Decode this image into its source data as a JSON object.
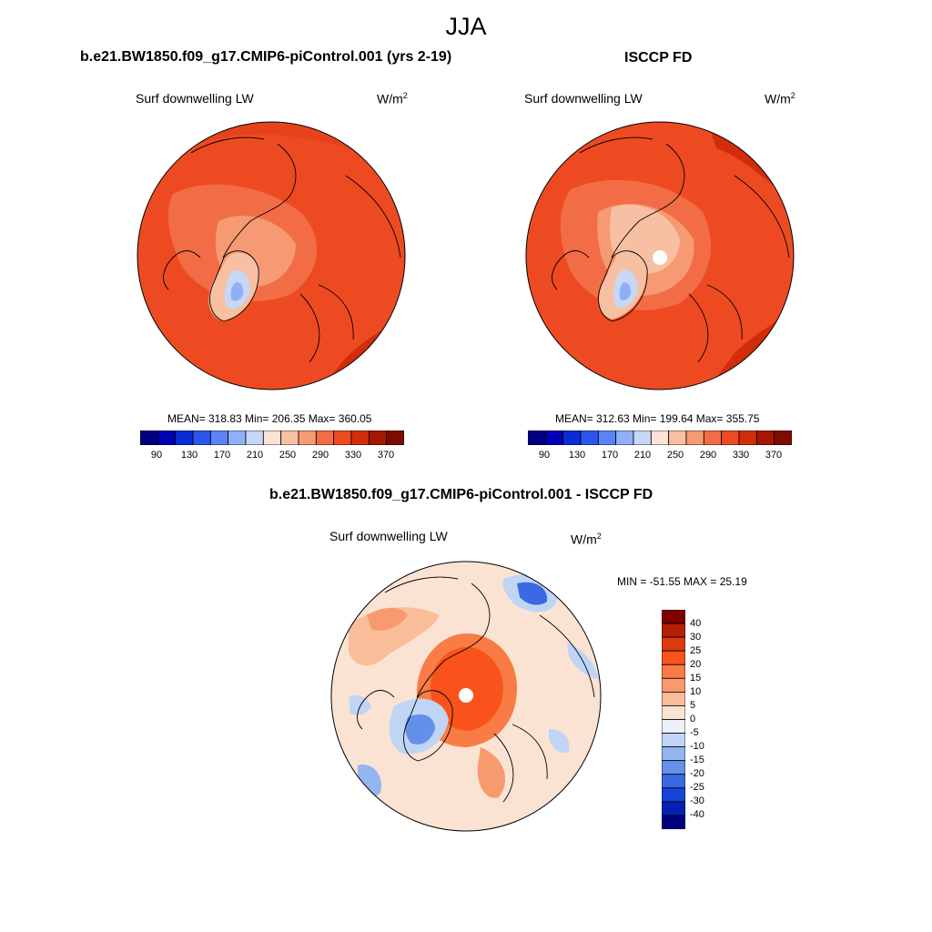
{
  "figure": {
    "season": "JJA"
  },
  "panels": [
    {
      "title": "b.e21.BW1850.f09_g17.CMIP6-piControl.001 (yrs 2-19)",
      "variable": "Surf downwelling LW",
      "units_base": "W/m",
      "units_exp": "2",
      "stats": "MEAN= 318.83  Min= 206.35  Max= 360.05"
    },
    {
      "title": "ISCCP FD",
      "variable": "Surf downwelling LW",
      "units_base": "W/m",
      "units_exp": "2",
      "stats": "MEAN= 312.63  Min= 199.64  Max= 355.75"
    },
    {
      "title": "b.e21.BW1850.f09_g17.CMIP6-piControl.001 - ISCCP FD",
      "variable": "Surf downwelling LW",
      "units_base": "W/m",
      "units_exp": "2",
      "stats": "MIN = -51.55 MAX =  25.19"
    }
  ],
  "colorbars": {
    "absolute": {
      "orientation": "horizontal",
      "colors": [
        "#000080",
        "#0000b4",
        "#0a2bd6",
        "#2c55ee",
        "#5a84f5",
        "#8fb0f6",
        "#c6d8f6",
        "#fbe3d3",
        "#f8c0a2",
        "#f69a73",
        "#f26c45",
        "#ee4a22",
        "#d22d0b",
        "#a61702",
        "#7c0b00"
      ],
      "labels": [
        "90",
        "130",
        "170",
        "210",
        "250",
        "290",
        "330",
        "370"
      ]
    },
    "difference": {
      "orientation": "vertical",
      "colors_top_to_bottom": [
        "#800000",
        "#b41f06",
        "#dd3a0c",
        "#f9531b",
        "#f97b45",
        "#f99a6e",
        "#f9bd99",
        "#fbe3d3",
        "#ecf1f9",
        "#c0d5f5",
        "#93b5f1",
        "#6590ea",
        "#3a69e3",
        "#1744d8",
        "#0520b3",
        "#00007e"
      ],
      "labels_top_to_bottom": [
        "40",
        "30",
        "25",
        "20",
        "15",
        "10",
        "5",
        "0",
        "-5",
        "-10",
        "-15",
        "-20",
        "-25",
        "-30",
        "-40"
      ]
    }
  }
}
